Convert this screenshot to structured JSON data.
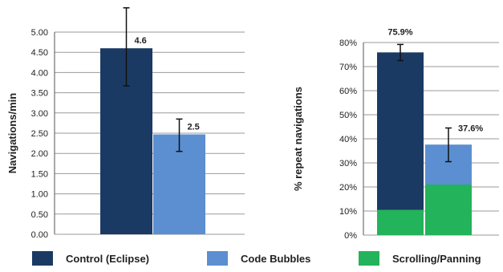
{
  "colors": {
    "control": "#1b3a63",
    "bubbles": "#5b8fd1",
    "scrolling": "#23b35a",
    "grid": "#9a9a9a",
    "axis": "#555555",
    "error": "#111111"
  },
  "legend": [
    {
      "key": "control",
      "label": "Control (Eclipse)"
    },
    {
      "key": "bubbles",
      "label": "Code Bubbles"
    },
    {
      "key": "scrolling",
      "label": "Scrolling/Panning"
    }
  ],
  "chart_data": [
    {
      "type": "bar",
      "ylabel": "Navigations/min",
      "ylim": [
        0,
        5
      ],
      "yticks": [
        "0.00",
        "0.50",
        "1.00",
        "1.50",
        "2.00",
        "2.50",
        "3.00",
        "3.50",
        "4.00",
        "4.50",
        "5.00"
      ],
      "grid": true,
      "series": [
        {
          "name": "Control (Eclipse)",
          "key": "control",
          "value": 4.6,
          "label": "4.6",
          "error": [
            3.67,
            5.6
          ]
        },
        {
          "name": "Code Bubbles",
          "key": "bubbles",
          "value": 2.47,
          "label": "2.5",
          "error": [
            2.05,
            2.85
          ]
        }
      ]
    },
    {
      "type": "bar",
      "stacked": true,
      "ylabel": "% repeat navigations",
      "ylim": [
        0,
        80
      ],
      "yticks": [
        "0%",
        "10%",
        "20%",
        "30%",
        "40%",
        "50%",
        "60%",
        "70%",
        "80%"
      ],
      "grid": true,
      "bars": [
        {
          "segments": [
            {
              "key": "scrolling",
              "value": 10.5
            },
            {
              "key": "control",
              "value": 65.4
            }
          ],
          "total": 75.9,
          "label": "75.9%",
          "error": [
            72.5,
            79.2
          ]
        },
        {
          "segments": [
            {
              "key": "scrolling",
              "value": 21
            },
            {
              "key": "bubbles",
              "value": 16.6
            }
          ],
          "total": 37.6,
          "label": "37.6%",
          "error": [
            30.5,
            44.5
          ]
        }
      ]
    }
  ]
}
